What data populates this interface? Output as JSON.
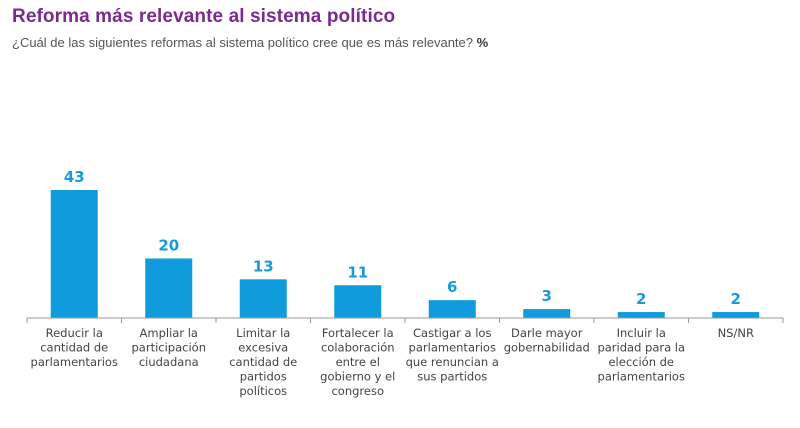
{
  "header": {
    "title": "Reforma más relevante al sistema político",
    "subtitle": "¿Cuál de las siguientes reformas al sistema político cree que es más relevante?",
    "unit": "%"
  },
  "colors": {
    "title": "#7b2a8f",
    "bar": "#0f9bdc",
    "value_label": "#1a9ad6",
    "axis": "#999999",
    "category_text": "#444444"
  },
  "chart_data": {
    "type": "bar",
    "title": "Reforma más relevante al sistema político",
    "subtitle": "¿Cuál de las siguientes reformas al sistema político cree que es más relevante? %",
    "xlabel": "",
    "ylabel": "%",
    "ylim": [
      0,
      43
    ],
    "grid": false,
    "legend": "none",
    "categories": [
      "Reducir la cantidad de parlamentarios",
      "Ampliar la participación ciudadana",
      "Limitar la excesiva cantidad de partidos políticos",
      "Fortalecer la colaboración entre el gobierno y el congreso",
      "Castigar a los parlamentarios que renuncian a sus partidos",
      "Darle mayor gobernabilidad",
      "Incluir la paridad para la elección de parlamentarios",
      "NS/NR"
    ],
    "category_lines": [
      [
        "Reducir la",
        "cantidad de",
        "parlamentarios"
      ],
      [
        "Ampliar la",
        "participación",
        "ciudadana"
      ],
      [
        "Limitar la",
        "excesiva",
        "cantidad de",
        "partidos",
        "políticos"
      ],
      [
        "Fortalecer la",
        "colaboración",
        "entre el",
        "gobierno y el",
        "congreso"
      ],
      [
        "Castigar a los",
        "parlamentarios",
        "que renuncian a",
        "sus partidos"
      ],
      [
        "Darle mayor",
        "gobernabilidad"
      ],
      [
        "Incluir la",
        "paridad para la",
        "elección de",
        "parlamentarios"
      ],
      [
        "NS/NR"
      ]
    ],
    "values": [
      43,
      20,
      13,
      11,
      6,
      3,
      2,
      2
    ],
    "value_labels": [
      "43",
      "20",
      "13",
      "11",
      "6",
      "3",
      "2",
      "2"
    ]
  }
}
